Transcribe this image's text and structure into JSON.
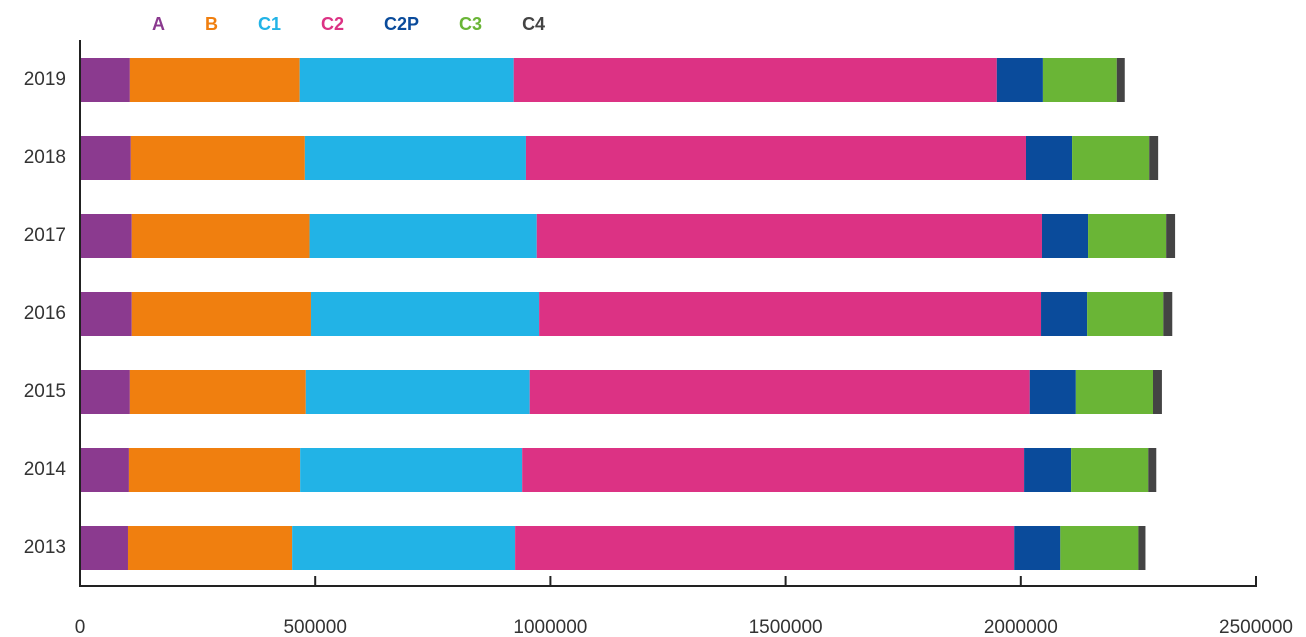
{
  "chart_data": {
    "type": "stacked-bar-horizontal",
    "categories": [
      "2019",
      "2018",
      "2017",
      "2016",
      "2015",
      "2014",
      "2013"
    ],
    "series": [
      {
        "name": "A",
        "color": "#8b3a8f",
        "values": [
          106000,
          108000,
          110000,
          110000,
          106000,
          104000,
          102000
        ]
      },
      {
        "name": "B",
        "color": "#f07f0f",
        "values": [
          361000,
          370000,
          378000,
          381000,
          374000,
          364000,
          349000
        ]
      },
      {
        "name": "C1",
        "color": "#22b3e6",
        "values": [
          455000,
          470000,
          483000,
          485000,
          476000,
          472000,
          474000
        ]
      },
      {
        "name": "C2",
        "color": "#dc3284",
        "values": [
          1027000,
          1063000,
          1074000,
          1067000,
          1063000,
          1067000,
          1061000
        ]
      },
      {
        "name": "C2P",
        "color": "#0a4b9b",
        "values": [
          98000,
          98000,
          98000,
          98000,
          98000,
          100000,
          98000
        ]
      },
      {
        "name": "C3",
        "color": "#6ab536",
        "values": [
          157000,
          164000,
          166000,
          162000,
          164000,
          164000,
          166000
        ]
      },
      {
        "name": "C4",
        "color": "#444444",
        "values": [
          17000,
          19000,
          19000,
          19000,
          19000,
          17000,
          15000
        ]
      }
    ],
    "xlim": [
      0,
      2500000
    ],
    "xticks": [
      0,
      500000,
      1000000,
      1500000,
      2000000,
      2500000
    ],
    "grid": false,
    "legend": "top"
  }
}
